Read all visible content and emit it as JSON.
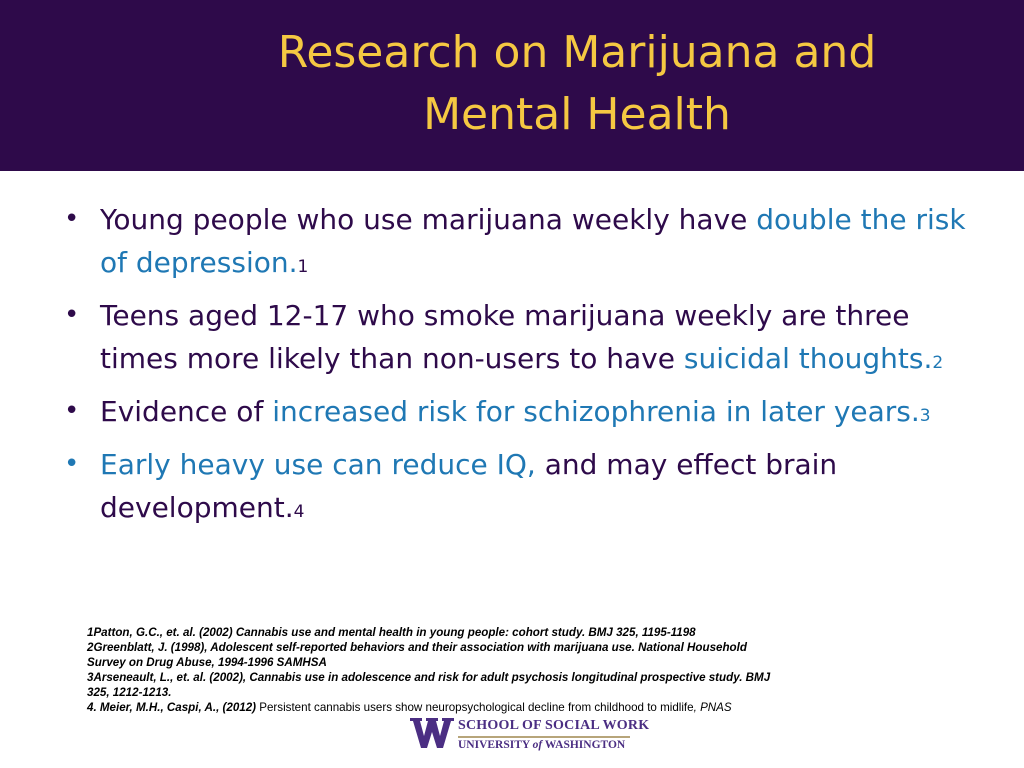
{
  "slide": {
    "title_line1": "Research on Marijuana and",
    "title_line2": "Mental Health"
  },
  "bullets": [
    {
      "bullet_symbol": "•",
      "text_before": "Young people who use marijuana weekly have ",
      "highlight": "double the risk of depression.",
      "text_after": "",
      "ref": "1"
    },
    {
      "bullet_symbol": "•",
      "text_before": "Teens aged 12-17 who smoke marijuana weekly are three times more likely than non-users to have ",
      "highlight": "suicidal thoughts.",
      "text_after": "",
      "ref": "2"
    },
    {
      "bullet_symbol": "•",
      "text_before": "Evidence of ",
      "highlight": "increased risk for schizophrenia in later years.",
      "text_after": "",
      "ref": "3"
    },
    {
      "bullet_symbol": "•",
      "text_before": "",
      "highlight": "Early heavy use can reduce IQ,",
      "text_after": " and may effect brain development.",
      "ref": "4"
    }
  ],
  "references": {
    "ref1": "1Patton, G.C., et. al. (2002) Cannabis use and mental health in young people: cohort study. BMJ 325, 1195-1198",
    "ref2_line1": "2Greenblatt, J. (1998), Adolescent self-reported behaviors and their association with marijuana use. National Household",
    "ref2_line2": "Survey on Drug Abuse, 1994-1996 SAMHSA",
    "ref3_line1": "3Arseneault, L., et. al. (2002), Cannabis use in adolescence and risk for adult psychosis longitudinal prospective study. BMJ",
    "ref3_line2": "325, 1212-1213.",
    "ref4_authors": "4. Meier, M.H., Caspi, A., (2012)",
    "ref4_title": " Persistent cannabis users show neuropsychological decline from childhood to midlife",
    "ref4_sep": ", ",
    "ref4_journal": "PNAS"
  },
  "logo": {
    "line1": "SCHOOL OF SOCIAL WORK",
    "line2_a": "UNIVERSITY ",
    "line2_of": "of",
    "line2_b": " WASHINGTON"
  },
  "colors": {
    "header_bg": "#2e0a4a",
    "title": "#f5c842",
    "body_text": "#2e0a4a",
    "highlight": "#1f78b4",
    "logo_purple": "#4b2e83",
    "logo_gold": "#b7a57a"
  },
  "icons": {
    "logo_mark": "uw-w-logo-icon"
  }
}
